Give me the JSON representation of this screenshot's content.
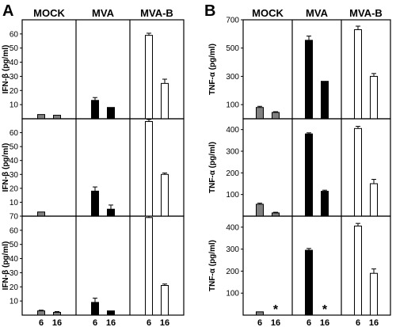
{
  "figure": {
    "panel_letters": [
      "A",
      "B"
    ],
    "columns": [
      "MOCK",
      "MVA",
      "MVA-B"
    ],
    "x_ticks": [
      "6",
      "16"
    ],
    "colors": {
      "MOCK": "#808080",
      "MVA": "#000000",
      "MVA-B": "#ffffff"
    }
  },
  "chart_data": [
    {
      "type": "bar",
      "panel": "A",
      "row": 1,
      "ylabel": "IFN-β (pg/ml)",
      "ylim": [
        0,
        70
      ],
      "yticks": [
        10,
        20,
        30,
        40,
        50,
        60
      ],
      "categories": [
        "6",
        "16"
      ],
      "series": [
        {
          "name": "MOCK",
          "values": [
            3,
            2.5
          ],
          "errors": [
            0,
            0
          ]
        },
        {
          "name": "MVA",
          "values": [
            13,
            8
          ],
          "errors": [
            2,
            0
          ]
        },
        {
          "name": "MVA-B",
          "values": [
            59,
            25
          ],
          "errors": [
            1.5,
            3
          ]
        }
      ],
      "annotations": []
    },
    {
      "type": "bar",
      "panel": "A",
      "row": 2,
      "ylabel": "IFN-β (pg/ml)",
      "ylim": [
        0,
        70
      ],
      "yticks": [
        10,
        20,
        30,
        40,
        50,
        60
      ],
      "categories": [
        "6",
        "16"
      ],
      "series": [
        {
          "name": "MOCK",
          "values": [
            3,
            0
          ],
          "errors": [
            0,
            0
          ]
        },
        {
          "name": "MVA",
          "values": [
            18,
            5
          ],
          "errors": [
            3,
            3
          ]
        },
        {
          "name": "MVA-B",
          "values": [
            68,
            30
          ],
          "errors": [
            1.5,
            1
          ]
        }
      ],
      "annotations": []
    },
    {
      "type": "bar",
      "panel": "A",
      "row": 3,
      "ylabel": "IFN-β (pg/ml)",
      "ylim": [
        0,
        70
      ],
      "yticks": [
        10,
        20,
        30,
        40,
        50,
        60,
        70
      ],
      "categories": [
        "6",
        "16"
      ],
      "series": [
        {
          "name": "MOCK",
          "values": [
            3,
            2
          ],
          "errors": [
            0.5,
            0.5
          ]
        },
        {
          "name": "MVA",
          "values": [
            9,
            3
          ],
          "errors": [
            3,
            0
          ]
        },
        {
          "name": "MVA-B",
          "values": [
            69,
            21
          ],
          "errors": [
            1,
            1
          ]
        }
      ],
      "annotations": []
    },
    {
      "type": "bar",
      "panel": "B",
      "row": 1,
      "ylabel": "TNF-α (pg/ml)",
      "ylim": [
        0,
        700
      ],
      "yticks": [
        100,
        300,
        500,
        700
      ],
      "categories": [
        "6",
        "16"
      ],
      "series": [
        {
          "name": "MOCK",
          "values": [
            80,
            45
          ],
          "errors": [
            8,
            5
          ]
        },
        {
          "name": "MVA",
          "values": [
            555,
            265
          ],
          "errors": [
            30,
            0
          ]
        },
        {
          "name": "MVA-B",
          "values": [
            630,
            300
          ],
          "errors": [
            25,
            20
          ]
        }
      ],
      "annotations": []
    },
    {
      "type": "bar",
      "panel": "B",
      "row": 2,
      "ylabel": "TNF-α (pg/ml)",
      "ylim": [
        0,
        450
      ],
      "yticks": [
        100,
        200,
        300,
        400
      ],
      "categories": [
        "6",
        "16"
      ],
      "series": [
        {
          "name": "MOCK",
          "values": [
            55,
            15
          ],
          "errors": [
            5,
            3
          ]
        },
        {
          "name": "MVA",
          "values": [
            380,
            115
          ],
          "errors": [
            5,
            5
          ]
        },
        {
          "name": "MVA-B",
          "values": [
            405,
            150
          ],
          "errors": [
            10,
            20
          ]
        }
      ],
      "annotations": []
    },
    {
      "type": "bar",
      "panel": "B",
      "row": 3,
      "ylabel": "TNF-α (pg/ml)",
      "ylim": [
        0,
        450
      ],
      "yticks": [
        100,
        200,
        300,
        400
      ],
      "categories": [
        "6",
        "16"
      ],
      "series": [
        {
          "name": "MOCK",
          "values": [
            15,
            0
          ],
          "errors": [
            0,
            0
          ]
        },
        {
          "name": "MVA",
          "values": [
            295,
            0
          ],
          "errors": [
            8,
            0
          ]
        },
        {
          "name": "MVA-B",
          "values": [
            405,
            190
          ],
          "errors": [
            12,
            20
          ]
        }
      ],
      "annotations": [
        {
          "series": "MOCK",
          "category": "16",
          "text": "*"
        },
        {
          "series": "MVA",
          "category": "16",
          "text": "*"
        }
      ]
    }
  ]
}
